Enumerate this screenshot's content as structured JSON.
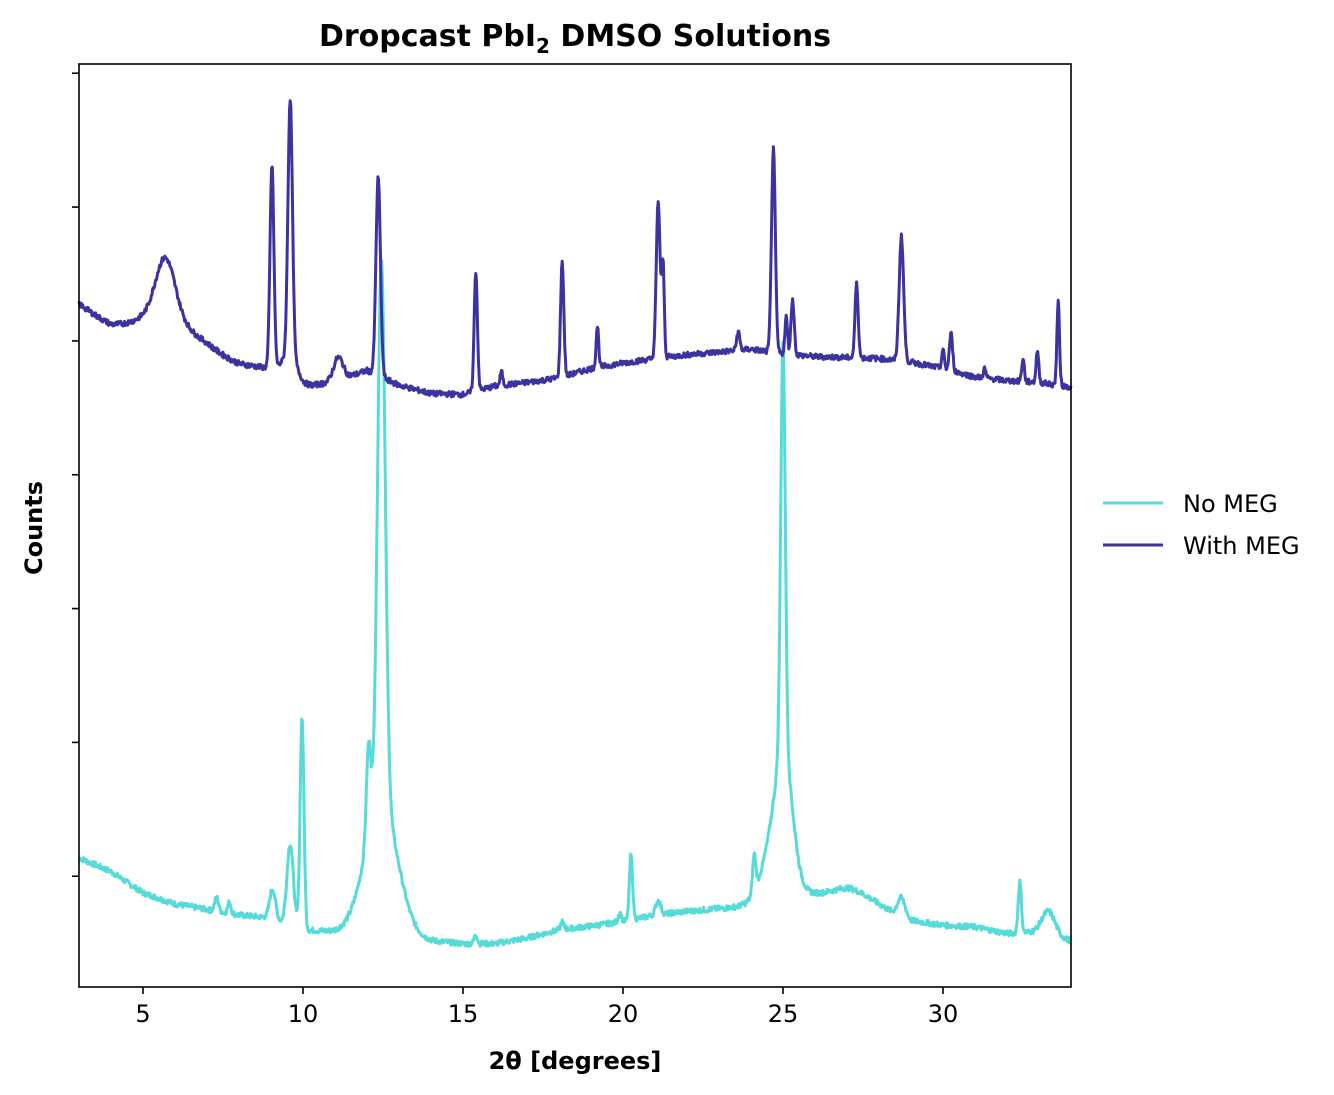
{
  "chart_data": {
    "type": "line",
    "title": "Dropcast PbI",
    "title_subscript": "2",
    "title_suffix": " DMSO Solutions",
    "xlabel": "2θ [degrees]",
    "ylabel": "Counts",
    "xlim": [
      3,
      34
    ],
    "ylim": [
      0,
      1000
    ],
    "xticks": [
      5,
      10,
      15,
      20,
      25,
      30
    ],
    "xtick_labels": [
      "5",
      "10",
      "15",
      "20",
      "25",
      "30"
    ],
    "yticks": [
      120,
      265,
      410,
      555,
      700,
      845,
      990
    ],
    "ytick_labels_shown": false,
    "grid": false,
    "legend_position": "right",
    "series": [
      {
        "name": "No MEG",
        "color": "#55dbd8",
        "baseline": [
          [
            3,
            140
          ],
          [
            4,
            125
          ],
          [
            5,
            102
          ],
          [
            6,
            90
          ],
          [
            7,
            84
          ],
          [
            8,
            78
          ],
          [
            9,
            75
          ],
          [
            10,
            62
          ],
          [
            11,
            60
          ],
          [
            12,
            62
          ],
          [
            13,
            56
          ],
          [
            14,
            50
          ],
          [
            15,
            47
          ],
          [
            16,
            47
          ],
          [
            17,
            53
          ],
          [
            18,
            62
          ],
          [
            19,
            66
          ],
          [
            20,
            71
          ],
          [
            21,
            78
          ],
          [
            22,
            82
          ],
          [
            23,
            85
          ],
          [
            24,
            88
          ],
          [
            25,
            100
          ],
          [
            26,
            100
          ],
          [
            27,
            98
          ],
          [
            28,
            86
          ],
          [
            29,
            72
          ],
          [
            30,
            67
          ],
          [
            31,
            65
          ],
          [
            32,
            58
          ],
          [
            33,
            60
          ],
          [
            34,
            50
          ]
        ],
        "peaks": [
          [
            7.3,
            15,
            0.06
          ],
          [
            7.7,
            12,
            0.05
          ],
          [
            9.05,
            32,
            0.09
          ],
          [
            9.6,
            88,
            0.1
          ],
          [
            9.97,
            230,
            0.06
          ],
          [
            12.05,
            100,
            0.07
          ],
          [
            12.45,
            590,
            0.12
          ],
          [
            12.45,
            140,
            0.5
          ],
          [
            15.4,
            10,
            0.05
          ],
          [
            18.1,
            8,
            0.05
          ],
          [
            19.9,
            10,
            0.05
          ],
          [
            20.25,
            70,
            0.05
          ],
          [
            21.1,
            15,
            0.08
          ],
          [
            24.1,
            40,
            0.05
          ],
          [
            24.8,
            70,
            0.4
          ],
          [
            25.0,
            440,
            0.07
          ],
          [
            25.05,
            100,
            0.25
          ],
          [
            27.2,
            10,
            0.6
          ],
          [
            28.7,
            20,
            0.12
          ],
          [
            32.4,
            55,
            0.05
          ],
          [
            33.3,
            25,
            0.2
          ]
        ]
      },
      {
        "name": "With MEG",
        "color": "#3c32a0",
        "baseline": [
          [
            3,
            740
          ],
          [
            4,
            715
          ],
          [
            5,
            705
          ],
          [
            6,
            695
          ],
          [
            7,
            690
          ],
          [
            8,
            675
          ],
          [
            9,
            670
          ],
          [
            10,
            650
          ],
          [
            11,
            656
          ],
          [
            12,
            668
          ],
          [
            13,
            652
          ],
          [
            14,
            643
          ],
          [
            15,
            642
          ],
          [
            16,
            651
          ],
          [
            17,
            655
          ],
          [
            18,
            660
          ],
          [
            19,
            670
          ],
          [
            20,
            676
          ],
          [
            21,
            681
          ],
          [
            22,
            685
          ],
          [
            23,
            688
          ],
          [
            24,
            691
          ],
          [
            25,
            686
          ],
          [
            26,
            683
          ],
          [
            27,
            682
          ],
          [
            28,
            681
          ],
          [
            29,
            677
          ],
          [
            30,
            670
          ],
          [
            31,
            661
          ],
          [
            32,
            657
          ],
          [
            33,
            655
          ],
          [
            34,
            650
          ]
        ],
        "peaks": [
          [
            5.7,
            62,
            0.3
          ],
          [
            5.7,
            30,
            0.8
          ],
          [
            9.03,
            220,
            0.06
          ],
          [
            9.6,
            280,
            0.07
          ],
          [
            9.6,
            25,
            0.25
          ],
          [
            11.1,
            25,
            0.15
          ],
          [
            12.35,
            215,
            0.07
          ],
          [
            15.4,
            130,
            0.05
          ],
          [
            16.2,
            15,
            0.04
          ],
          [
            18.1,
            125,
            0.05
          ],
          [
            19.2,
            45,
            0.04
          ],
          [
            21.1,
            170,
            0.06
          ],
          [
            21.25,
            100,
            0.04
          ],
          [
            23.6,
            20,
            0.05
          ],
          [
            24.7,
            220,
            0.06
          ],
          [
            25.1,
            40,
            0.04
          ],
          [
            25.3,
            60,
            0.05
          ],
          [
            27.3,
            80,
            0.05
          ],
          [
            28.7,
            135,
            0.07
          ],
          [
            30.0,
            20,
            0.04
          ],
          [
            30.25,
            40,
            0.05
          ],
          [
            31.3,
            10,
            0.04
          ],
          [
            32.5,
            25,
            0.04
          ],
          [
            32.95,
            35,
            0.04
          ],
          [
            33.6,
            90,
            0.04
          ]
        ]
      }
    ]
  }
}
